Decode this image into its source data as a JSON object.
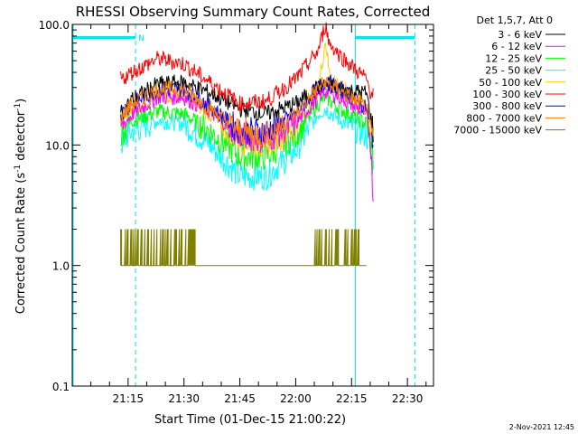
{
  "chart_data": {
    "type": "line",
    "title": "RHESSI Observing Summary Count Rates, Corrected",
    "xlabel": "Start Time (01-Dec-15 21:00:22)",
    "ylabel_main": "Corrected Count Rate (s",
    "ylabel_sup1": "-1",
    "ylabel_mid": " detector",
    "ylabel_sup2": "-1",
    "ylabel_end": ")",
    "yscale": "log",
    "ylim": [
      0.1,
      100.0
    ],
    "xlim_minutes": [
      0,
      97
    ],
    "xticks": [
      {
        "m": 15,
        "label": "21:15"
      },
      {
        "m": 30,
        "label": "21:30"
      },
      {
        "m": 45,
        "label": "21:45"
      },
      {
        "m": 60,
        "label": "22:00"
      },
      {
        "m": 75,
        "label": "22:15"
      },
      {
        "m": 90,
        "label": "22:30"
      }
    ],
    "yticks": [
      {
        "v": 0.1,
        "label": "0.1"
      },
      {
        "v": 1.0,
        "label": "1.0"
      },
      {
        "v": 10.0,
        "label": "10.0"
      },
      {
        "v": 100.0,
        "label": "100.0"
      }
    ],
    "legend_header": "Det 1,5,7, Att 0",
    "legend_placement": "top-right outside plot",
    "flags": {
      "night_intervals_minutes": [
        [
          0,
          17
        ],
        [
          76,
          92
        ]
      ],
      "night_bar_color": "#00e5ee",
      "n_label": "N",
      "lines_solid_minutes": [
        0,
        76
      ],
      "lines_dashed_minutes": [
        17,
        92
      ]
    },
    "series": [
      {
        "name": "3 - 6 keV",
        "color": "#000000",
        "points": [
          [
            13,
            18
          ],
          [
            16,
            24
          ],
          [
            23,
            32
          ],
          [
            30,
            33
          ],
          [
            37,
            27
          ],
          [
            45,
            20
          ],
          [
            52,
            18
          ],
          [
            60,
            22
          ],
          [
            66,
            30
          ],
          [
            68,
            32
          ],
          [
            72,
            29
          ],
          [
            79,
            27
          ],
          [
            80,
            18
          ],
          [
            81,
            12
          ]
        ]
      },
      {
        "name": "6 - 12 keV",
        "color": "#ff00ff",
        "points": [
          [
            13,
            14
          ],
          [
            16,
            18
          ],
          [
            23,
            25
          ],
          [
            30,
            25
          ],
          [
            37,
            19
          ],
          [
            45,
            12
          ],
          [
            52,
            11
          ],
          [
            60,
            15
          ],
          [
            66,
            25
          ],
          [
            68,
            28
          ],
          [
            72,
            25
          ],
          [
            79,
            18
          ],
          [
            80,
            12
          ],
          [
            81,
            2.8
          ]
        ]
      },
      {
        "name": "12 - 25 keV",
        "color": "#00ff00",
        "points": [
          [
            13,
            12
          ],
          [
            16,
            16
          ],
          [
            23,
            19
          ],
          [
            30,
            18
          ],
          [
            37,
            13
          ],
          [
            45,
            8
          ],
          [
            52,
            8
          ],
          [
            60,
            12
          ],
          [
            66,
            22
          ],
          [
            68,
            25
          ],
          [
            72,
            20
          ],
          [
            79,
            15
          ],
          [
            80,
            11
          ],
          [
            81,
            7
          ]
        ]
      },
      {
        "name": "25 - 50 keV",
        "color": "#00ffff",
        "points": [
          [
            13,
            10
          ],
          [
            16,
            13
          ],
          [
            23,
            16
          ],
          [
            30,
            15
          ],
          [
            37,
            10
          ],
          [
            45,
            5.5
          ],
          [
            52,
            5.5
          ],
          [
            60,
            9
          ],
          [
            66,
            18
          ],
          [
            68,
            20
          ],
          [
            72,
            16
          ],
          [
            79,
            12
          ],
          [
            80,
            9
          ],
          [
            81,
            6
          ]
        ]
      },
      {
        "name": "50 - 100 keV",
        "color": "#ffcc00",
        "points": [
          [
            13,
            15
          ],
          [
            16,
            20
          ],
          [
            23,
            26
          ],
          [
            30,
            26
          ],
          [
            37,
            18
          ],
          [
            45,
            11
          ],
          [
            52,
            10
          ],
          [
            60,
            14
          ],
          [
            66,
            28
          ],
          [
            68,
            75
          ],
          [
            69,
            40
          ],
          [
            72,
            30
          ],
          [
            79,
            22
          ],
          [
            80,
            14
          ],
          [
            81,
            10
          ]
        ]
      },
      {
        "name": "100 - 300 keV",
        "color": "#ff0000",
        "points": [
          [
            13,
            35
          ],
          [
            16,
            40
          ],
          [
            23,
            52
          ],
          [
            30,
            47
          ],
          [
            37,
            33
          ],
          [
            45,
            22
          ],
          [
            52,
            23
          ],
          [
            60,
            35
          ],
          [
            66,
            60
          ],
          [
            68,
            100
          ],
          [
            69,
            70
          ],
          [
            72,
            55
          ],
          [
            79,
            35
          ],
          [
            80,
            28
          ],
          [
            81,
            26
          ]
        ]
      },
      {
        "name": "300 - 800 keV",
        "color": "#0000ff",
        "points": [
          [
            13,
            18
          ],
          [
            16,
            22
          ],
          [
            23,
            29
          ],
          [
            30,
            29
          ],
          [
            37,
            21
          ],
          [
            45,
            13
          ],
          [
            52,
            13
          ],
          [
            60,
            18
          ],
          [
            66,
            30
          ],
          [
            68,
            34
          ],
          [
            72,
            29
          ],
          [
            79,
            20
          ],
          [
            80,
            14
          ],
          [
            81,
            11
          ]
        ]
      },
      {
        "name": "800 - 7000 keV",
        "color": "#ff8000",
        "points": [
          [
            13,
            17
          ],
          [
            16,
            22
          ],
          [
            23,
            29
          ],
          [
            30,
            29
          ],
          [
            37,
            20
          ],
          [
            45,
            13
          ],
          [
            52,
            12
          ],
          [
            60,
            18
          ],
          [
            66,
            30
          ],
          [
            68,
            33
          ],
          [
            72,
            28
          ],
          [
            79,
            20
          ],
          [
            80,
            14
          ],
          [
            81,
            11
          ]
        ]
      },
      {
        "name": "7000 - 15000 keV",
        "color": "#808000",
        "points": [
          [
            13,
            1.5
          ],
          [
            16,
            2
          ],
          [
            23,
            2
          ],
          [
            30,
            1.5
          ],
          [
            37,
            1
          ],
          [
            45,
            1
          ],
          [
            52,
            1
          ],
          [
            60,
            1
          ],
          [
            66,
            2
          ],
          [
            72,
            2
          ],
          [
            79,
            1
          ]
        ]
      }
    ],
    "footer_date": "2-Nov-2021 12:45"
  }
}
